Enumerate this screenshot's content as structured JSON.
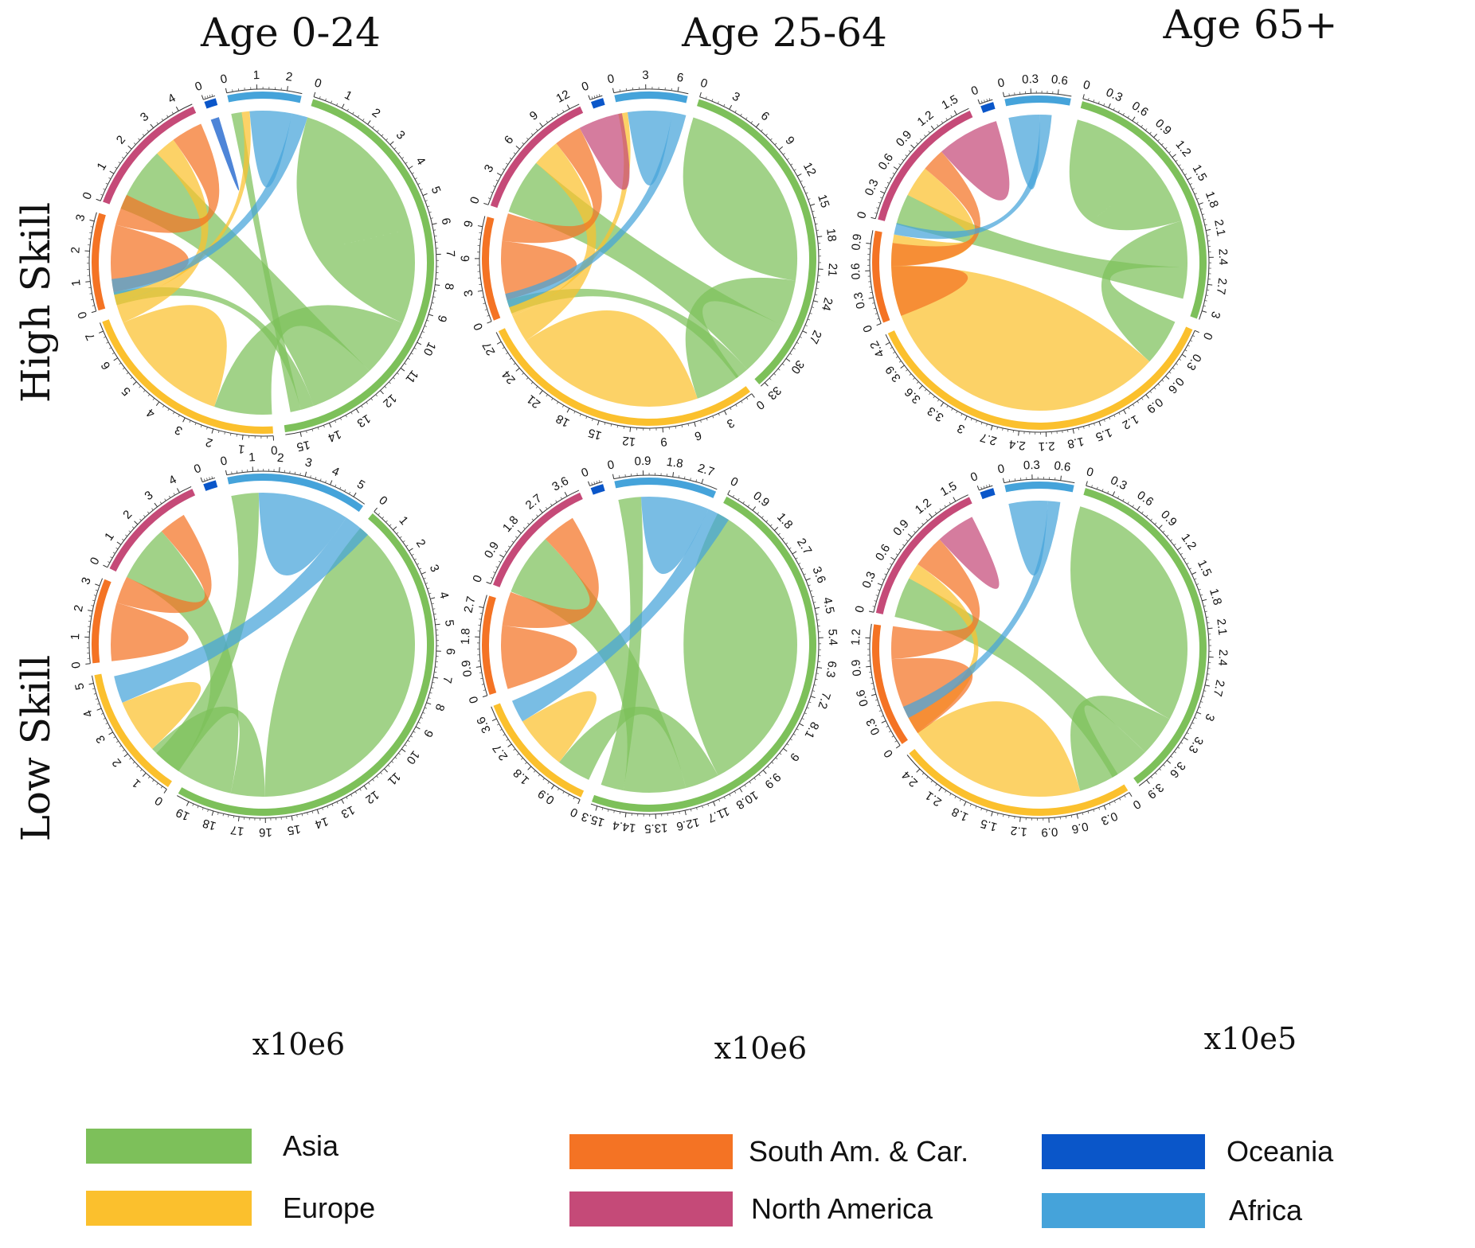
{
  "column_titles": [
    "Age 0-24",
    "Age 25-64",
    "Age 65+"
  ],
  "row_titles": [
    "High Skill",
    "Low Skill"
  ],
  "unit_labels": [
    "x10e6",
    "x10e6",
    "x10e5"
  ],
  "colors": {
    "Asia": "#7dc05a",
    "Europe": "#fbc02d",
    "South Am. & Car.": "#f47324",
    "North America": "#c54a78",
    "Oceania": "#0a56c9",
    "Africa": "#45a3da"
  },
  "legend": [
    "Asia",
    "Europe",
    "South Am. & Car.",
    "North America",
    "Oceania",
    "Africa"
  ],
  "chart_data": [
    {
      "type": "chord",
      "age": "Age 0-24",
      "skill": "High Skill",
      "regions": [
        {
          "name": "Africa",
          "total": 2.5,
          "ticks": [
            "0",
            "1",
            "2"
          ]
        },
        {
          "name": "Asia",
          "total": 15.5,
          "ticks": [
            "0",
            "1",
            "2",
            "3",
            "4",
            "5",
            "6",
            "7",
            "8",
            "9",
            "10",
            "11",
            "12",
            "13",
            "14",
            "15"
          ]
        },
        {
          "name": "Europe",
          "total": 7.3,
          "ticks": [
            "0",
            "1",
            "2",
            "3",
            "4",
            "5",
            "6",
            "7"
          ]
        },
        {
          "name": "South Am. & Car.",
          "total": 3.3,
          "ticks": [
            "0",
            "1",
            "2",
            "3"
          ]
        },
        {
          "name": "North America",
          "total": 4.5,
          "ticks": [
            "0",
            "1",
            "2",
            "3",
            "4"
          ]
        },
        {
          "name": "Oceania",
          "total": 0.4,
          "ticks": [
            "0"
          ]
        }
      ],
      "flows": [
        {
          "from": "Asia",
          "to": "Asia",
          "value": 6.0
        },
        {
          "from": "Asia",
          "to": "Europe",
          "value": 2.2
        },
        {
          "from": "Asia",
          "to": "North America",
          "value": 2.5
        },
        {
          "from": "Asia",
          "to": "South Am. & Car.",
          "value": 0.5
        },
        {
          "from": "Asia",
          "to": "Africa",
          "value": 0.4
        },
        {
          "from": "Europe",
          "to": "Europe",
          "value": 3.0
        },
        {
          "from": "Europe",
          "to": "North America",
          "value": 0.8
        },
        {
          "from": "Europe",
          "to": "Africa",
          "value": 0.3
        },
        {
          "from": "South Am. & Car.",
          "to": "South Am. & Car.",
          "value": 1.6
        },
        {
          "from": "South Am. & Car.",
          "to": "North America",
          "value": 1.2
        },
        {
          "from": "Africa",
          "to": "Africa",
          "value": 1.0
        },
        {
          "from": "Africa",
          "to": "Europe",
          "value": 0.6
        },
        {
          "from": "Oceania",
          "to": "Oceania",
          "value": 0.2
        }
      ]
    },
    {
      "type": "chord",
      "age": "Age 25-64",
      "skill": "High Skill",
      "regions": [
        {
          "name": "Africa",
          "total": 7,
          "ticks": [
            "0",
            "3",
            "6"
          ]
        },
        {
          "name": "Asia",
          "total": 33.5,
          "ticks": [
            "0",
            "3",
            "6",
            "9",
            "12",
            "15",
            "18",
            "21",
            "24",
            "27",
            "30",
            "33"
          ]
        },
        {
          "name": "Europe",
          "total": 28,
          "ticks": [
            "0",
            "3",
            "6",
            "9",
            "12",
            "15",
            "18",
            "21",
            "24",
            "27"
          ]
        },
        {
          "name": "South Am. & Car.",
          "total": 10,
          "ticks": [
            "0",
            "3",
            "6",
            "9"
          ]
        },
        {
          "name": "North America",
          "total": 13,
          "ticks": [
            "0",
            "3",
            "6",
            "9",
            "12"
          ]
        },
        {
          "name": "Oceania",
          "total": 1.2,
          "ticks": [
            "0"
          ]
        }
      ],
      "flows": [
        {
          "from": "Asia",
          "to": "Asia",
          "value": 14
        },
        {
          "from": "Asia",
          "to": "Europe",
          "value": 5
        },
        {
          "from": "Asia",
          "to": "North America",
          "value": 6
        },
        {
          "from": "Asia",
          "to": "South Am. & Car.",
          "value": 1.5
        },
        {
          "from": "Europe",
          "to": "Europe",
          "value": 13
        },
        {
          "from": "Europe",
          "to": "North America",
          "value": 3
        },
        {
          "from": "Europe",
          "to": "Africa",
          "value": 1
        },
        {
          "from": "South Am. & Car.",
          "to": "South Am. & Car.",
          "value": 4
        },
        {
          "from": "South Am. & Car.",
          "to": "North America",
          "value": 3
        },
        {
          "from": "North America",
          "to": "North America",
          "value": 3
        },
        {
          "from": "Africa",
          "to": "Africa",
          "value": 3
        },
        {
          "from": "Africa",
          "to": "Europe",
          "value": 1.5
        }
      ]
    },
    {
      "type": "chord",
      "age": "Age 65+",
      "skill": "High Skill",
      "regions": [
        {
          "name": "Africa",
          "total": 0.75,
          "ticks": [
            "0",
            "0.3",
            "0.6"
          ]
        },
        {
          "name": "Asia",
          "total": 3.1,
          "ticks": [
            "0",
            "0.3",
            "0.6",
            "0.9",
            "1.2",
            "1.5",
            "1.8",
            "2.1",
            "2.4",
            "2.7",
            "3"
          ]
        },
        {
          "name": "Europe",
          "total": 4.3,
          "ticks": [
            "0",
            "0.3",
            "0.6",
            "0.9",
            "1.2",
            "1.5",
            "1.8",
            "2.1",
            "2.4",
            "2.7",
            "3",
            "3.3",
            "3.6",
            "3.9",
            "4.2"
          ]
        },
        {
          "name": "South Am. & Car.",
          "total": 1.05,
          "ticks": [
            "0",
            "0.3",
            "0.6",
            "0.9"
          ]
        },
        {
          "name": "North America",
          "total": 1.65,
          "ticks": [
            "0",
            "0.3",
            "0.6",
            "0.9",
            "1.2",
            "1.5"
          ]
        },
        {
          "name": "Oceania",
          "total": 0.15,
          "ticks": [
            "0"
          ]
        }
      ],
      "flows": [
        {
          "from": "Asia",
          "to": "Asia",
          "value": 1.2
        },
        {
          "from": "Asia",
          "to": "Europe",
          "value": 0.6
        },
        {
          "from": "Asia",
          "to": "North America",
          "value": 0.4
        },
        {
          "from": "Europe",
          "to": "Europe",
          "value": 2.8
        },
        {
          "from": "Europe",
          "to": "North America",
          "value": 0.4
        },
        {
          "from": "South Am. & Car.",
          "to": "South Am. & Car.",
          "value": 0.4
        },
        {
          "from": "South Am. & Car.",
          "to": "North America",
          "value": 0.3
        },
        {
          "from": "North America",
          "to": "North America",
          "value": 0.5
        },
        {
          "from": "Africa",
          "to": "Africa",
          "value": 0.25
        },
        {
          "from": "Africa",
          "to": "Europe",
          "value": 0.15
        }
      ]
    },
    {
      "type": "chord",
      "age": "Age 0-24",
      "skill": "Low Skill",
      "regions": [
        {
          "name": "Africa",
          "total": 5.5,
          "ticks": [
            "0",
            "1",
            "2",
            "3",
            "4",
            "5"
          ]
        },
        {
          "name": "Asia",
          "total": 19.5,
          "ticks": [
            "0",
            "1",
            "2",
            "3",
            "4",
            "5",
            "6",
            "7",
            "8",
            "9",
            "10",
            "11",
            "12",
            "13",
            "14",
            "15",
            "16",
            "17",
            "18",
            "19"
          ]
        },
        {
          "name": "Europe",
          "total": 5.3,
          "ticks": [
            "0",
            "1",
            "2",
            "3",
            "4",
            "5"
          ]
        },
        {
          "name": "South Am. & Car.",
          "total": 3.3,
          "ticks": [
            "0",
            "1",
            "2",
            "3"
          ]
        },
        {
          "name": "North America",
          "total": 4.5,
          "ticks": [
            "0",
            "1",
            "2",
            "3",
            "4"
          ]
        },
        {
          "name": "Oceania",
          "total": 0.5,
          "ticks": [
            "0"
          ]
        }
      ],
      "flows": [
        {
          "from": "Asia",
          "to": "Asia",
          "value": 10
        },
        {
          "from": "Asia",
          "to": "Europe",
          "value": 1.5
        },
        {
          "from": "Asia",
          "to": "North America",
          "value": 2.5
        },
        {
          "from": "Asia",
          "to": "Africa",
          "value": 1.2
        },
        {
          "from": "Europe",
          "to": "Europe",
          "value": 1.5
        },
        {
          "from": "Africa",
          "to": "Africa",
          "value": 2.5
        },
        {
          "from": "Africa",
          "to": "Europe",
          "value": 1.2
        },
        {
          "from": "South Am. & Car.",
          "to": "South Am. & Car.",
          "value": 1.6
        },
        {
          "from": "South Am. & Car.",
          "to": "North America",
          "value": 1.2
        }
      ]
    },
    {
      "type": "chord",
      "age": "Age 25-64",
      "skill": "Low Skill",
      "regions": [
        {
          "name": "Africa",
          "total": 3.2,
          "ticks": [
            "0",
            "0.9",
            "1.8",
            "2.7"
          ]
        },
        {
          "name": "Asia",
          "total": 15.5,
          "ticks": [
            "0",
            "0.9",
            "1.8",
            "2.7",
            "3.6",
            "4.5",
            "5.4",
            "6.3",
            "7.2",
            "8.1",
            "9",
            "9.9",
            "10.8",
            "11.7",
            "12.6",
            "13.5",
            "14.4",
            "15.3"
          ]
        },
        {
          "name": "Europe",
          "total": 4.0,
          "ticks": [
            "0",
            "0.9",
            "1.8",
            "2.7",
            "3.6"
          ]
        },
        {
          "name": "South Am. & Car.",
          "total": 3.1,
          "ticks": [
            "0",
            "0.9",
            "1.8",
            "2.7"
          ]
        },
        {
          "name": "North America",
          "total": 4.0,
          "ticks": [
            "0",
            "0.9",
            "1.8",
            "2.7",
            "3.6"
          ]
        },
        {
          "name": "Oceania",
          "total": 0.4,
          "ticks": [
            "0"
          ]
        }
      ],
      "flows": [
        {
          "from": "Asia",
          "to": "Asia",
          "value": 7
        },
        {
          "from": "Asia",
          "to": "Europe",
          "value": 1.2
        },
        {
          "from": "Asia",
          "to": "North America",
          "value": 2.2
        },
        {
          "from": "Asia",
          "to": "Africa",
          "value": 0.8
        },
        {
          "from": "Europe",
          "to": "Europe",
          "value": 1.2
        },
        {
          "from": "Africa",
          "to": "Africa",
          "value": 1.5
        },
        {
          "from": "Africa",
          "to": "Europe",
          "value": 0.8
        },
        {
          "from": "South Am. & Car.",
          "to": "South Am. & Car.",
          "value": 1.4
        },
        {
          "from": "South Am. & Car.",
          "to": "North America",
          "value": 1.2
        }
      ]
    },
    {
      "type": "chord",
      "age": "Age 65+",
      "skill": "Low Skill",
      "regions": [
        {
          "name": "Africa",
          "total": 0.75,
          "ticks": [
            "0",
            "0.3",
            "0.6"
          ]
        },
        {
          "name": "Asia",
          "total": 4.0,
          "ticks": [
            "0",
            "0.3",
            "0.6",
            "0.9",
            "1.2",
            "1.5",
            "1.8",
            "2.1",
            "2.4",
            "2.7",
            "3",
            "3.3",
            "3.6",
            "3.9"
          ]
        },
        {
          "name": "Europe",
          "total": 2.6,
          "ticks": [
            "0",
            "0.3",
            "0.6",
            "0.9",
            "1.2",
            "1.5",
            "1.8",
            "2.1",
            "2.4"
          ]
        },
        {
          "name": "South Am. & Car.",
          "total": 1.35,
          "ticks": [
            "0",
            "0.3",
            "0.6",
            "0.9",
            "1.2"
          ]
        },
        {
          "name": "North America",
          "total": 1.65,
          "ticks": [
            "0",
            "0.3",
            "0.6",
            "0.9",
            "1.2",
            "1.5"
          ]
        },
        {
          "name": "Oceania",
          "total": 0.15,
          "ticks": [
            "0"
          ]
        }
      ],
      "flows": [
        {
          "from": "Asia",
          "to": "Asia",
          "value": 2.0
        },
        {
          "from": "Asia",
          "to": "Europe",
          "value": 0.5
        },
        {
          "from": "Asia",
          "to": "North America",
          "value": 0.5
        },
        {
          "from": "Europe",
          "to": "Europe",
          "value": 1.4
        },
        {
          "from": "Europe",
          "to": "North America",
          "value": 0.2
        },
        {
          "from": "South Am. & Car.",
          "to": "South Am. & Car.",
          "value": 0.6
        },
        {
          "from": "South Am. & Car.",
          "to": "North America",
          "value": 0.4
        },
        {
          "from": "North America",
          "to": "North America",
          "value": 0.3
        },
        {
          "from": "Africa",
          "to": "Africa",
          "value": 0.3
        },
        {
          "from": "Africa",
          "to": "Europe",
          "value": 0.15
        }
      ]
    }
  ]
}
